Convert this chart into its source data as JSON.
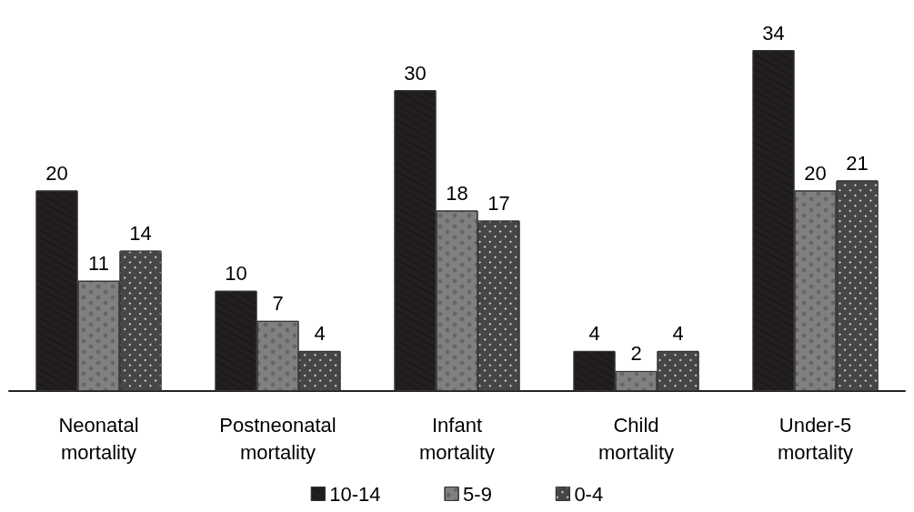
{
  "chart_data": {
    "type": "bar",
    "categories": [
      "Neonatal\nmortality",
      "Postneonatal\nmortality",
      "Infant\nmortality",
      "Child\nmortality",
      "Under-5\nmortality"
    ],
    "series": [
      {
        "name": "10-14",
        "color": "#231f20",
        "values": [
          20,
          10,
          30,
          4,
          34
        ]
      },
      {
        "name": "5-9",
        "color": "#808083",
        "values": [
          11,
          7,
          18,
          2,
          20
        ]
      },
      {
        "name": "0-4",
        "color": "#464648",
        "values": [
          14,
          4,
          17,
          4,
          21
        ]
      }
    ],
    "data_labels": true,
    "legend": "bottom",
    "grid": false
  }
}
